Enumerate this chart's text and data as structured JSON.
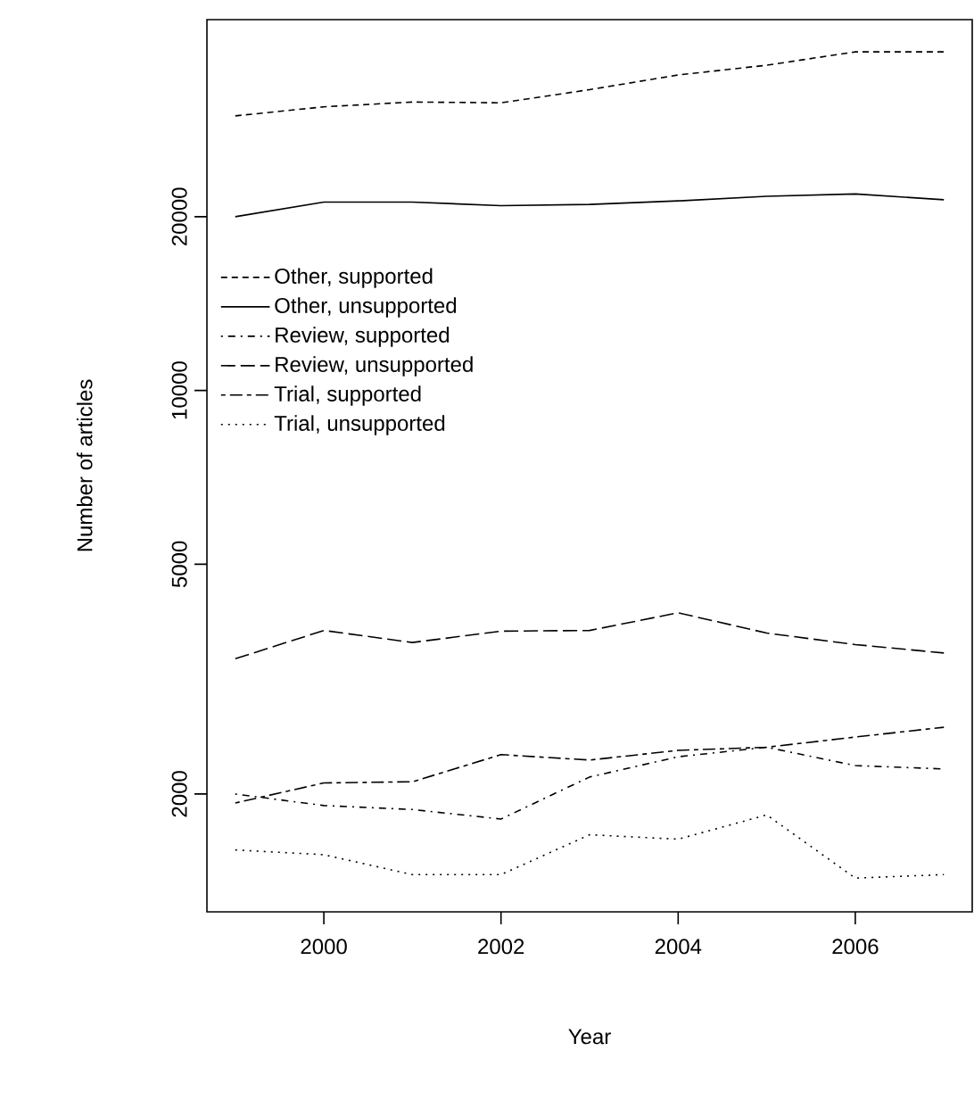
{
  "chart_data": {
    "type": "line",
    "xlabel": "Year",
    "ylabel": "Number of articles",
    "x": [
      1999,
      2000,
      2001,
      2002,
      2003,
      2004,
      2005,
      2006,
      2007
    ],
    "series": [
      {
        "name": "Other, supported",
        "color": "#000000",
        "line_style": "dashed",
        "values": [
          29900,
          31000,
          31600,
          31500,
          33200,
          35200,
          36600,
          38600,
          38600
        ]
      },
      {
        "name": "Other, unsupported",
        "color": "#000000",
        "line_style": "solid",
        "values": [
          20000,
          21200,
          21200,
          20900,
          21000,
          21300,
          21700,
          21900,
          21400
        ]
      },
      {
        "name": "Review, supported",
        "color": "#000000",
        "line_style": "dotdash",
        "values": [
          2000,
          1910,
          1880,
          1810,
          2140,
          2320,
          2410,
          2240,
          2210
        ]
      },
      {
        "name": "Review, unsupported",
        "color": "#000000",
        "line_style": "longdash",
        "values": [
          3430,
          3840,
          3660,
          3830,
          3840,
          4120,
          3800,
          3630,
          3510
        ]
      },
      {
        "name": "Trial, supported",
        "color": "#000000",
        "line_style": "twodash",
        "values": [
          1930,
          2090,
          2100,
          2340,
          2290,
          2380,
          2410,
          2510,
          2610
        ]
      },
      {
        "name": "Trial, unsupported",
        "color": "#000000",
        "line_style": "dotted",
        "values": [
          1600,
          1570,
          1450,
          1450,
          1700,
          1670,
          1840,
          1430,
          1450
        ]
      }
    ],
    "log": "y",
    "xlim": [
      1998.68,
      2007.32
    ],
    "ylim": [
      1250,
      43900
    ],
    "xticks": [
      2000,
      2002,
      2004,
      2006
    ],
    "yticks": [
      2000,
      5000,
      10000,
      20000
    ],
    "legend": "left",
    "grid": false,
    "marker": "none"
  }
}
